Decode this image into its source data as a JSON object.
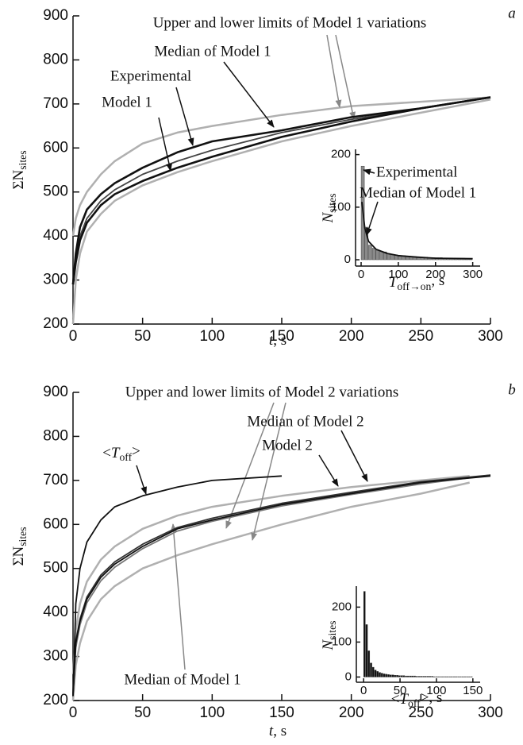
{
  "chart_data": [
    {
      "type": "line",
      "panel_label": "a",
      "x_label": [
        {
          "text": "t",
          "italic": true
        },
        ", s"
      ],
      "y_label": [
        "ΣN",
        {
          "text": "sites",
          "sub": true
        }
      ],
      "xlim": [
        0,
        300
      ],
      "ylim": [
        200,
        900
      ],
      "xticks": [
        0,
        50,
        100,
        150,
        200,
        250,
        300
      ],
      "yticks": [
        200,
        300,
        400,
        500,
        600,
        700,
        800,
        900
      ],
      "series": [
        {
          "name": "Upper and lower limits of Model 1 variations",
          "color": "#b0b0b0",
          "x": [
            0,
            2,
            5,
            10,
            20,
            30,
            50,
            75,
            100,
            150,
            200,
            250,
            300
          ],
          "upper": [
            400,
            440,
            470,
            500,
            540,
            570,
            610,
            635,
            650,
            675,
            695,
            705,
            715
          ],
          "lower": [
            200,
            300,
            360,
            410,
            450,
            480,
            515,
            545,
            570,
            615,
            650,
            680,
            710
          ]
        },
        {
          "name": "Median of Model 1",
          "color": "#444444",
          "x": [
            0,
            2,
            5,
            10,
            20,
            30,
            50,
            75,
            100,
            150,
            200,
            250,
            300
          ],
          "values": [
            290,
            350,
            400,
            440,
            480,
            505,
            540,
            570,
            595,
            635,
            665,
            690,
            715
          ]
        },
        {
          "name": "Experimental",
          "color": "#111111",
          "x": [
            0,
            2,
            5,
            10,
            20,
            30,
            50,
            75,
            100,
            150,
            200,
            250,
            300
          ],
          "values": [
            290,
            360,
            420,
            460,
            495,
            520,
            555,
            590,
            615,
            640,
            670,
            690,
            715
          ]
        },
        {
          "name": "Model 1",
          "color": "#111111",
          "x": [
            0,
            2,
            5,
            10,
            20,
            30,
            50,
            75,
            100,
            150,
            200,
            250,
            300
          ],
          "values": [
            290,
            340,
            390,
            430,
            470,
            495,
            525,
            555,
            580,
            625,
            660,
            690,
            715
          ]
        }
      ]
    },
    {
      "type": "histogram",
      "x_label": [
        {
          "text": "T",
          "italic": true
        },
        {
          "text": "off→on",
          "sub": true
        },
        ", s"
      ],
      "y_label": [
        {
          "text": "N",
          "italic": true
        },
        {
          "text": "sites",
          "sub": true
        }
      ],
      "xlim": [
        -15,
        320
      ],
      "ylim": [
        -12,
        210
      ],
      "xticks": [
        0,
        100,
        200,
        300
      ],
      "yticks": [
        0,
        100,
        200
      ],
      "name": "Experimental",
      "color": "#8a8a8a",
      "bins": [
        0,
        10,
        20,
        30,
        40,
        50,
        60,
        70,
        80,
        90,
        100,
        110,
        120,
        130,
        140,
        150,
        160,
        170,
        180,
        190,
        200,
        210,
        220,
        230,
        240,
        250,
        260,
        270,
        280,
        290,
        300
      ],
      "values": [
        178,
        62,
        28,
        22,
        18,
        16,
        15,
        12,
        10,
        9,
        8,
        8,
        7,
        6,
        6,
        5,
        5,
        5,
        4,
        4,
        4,
        4,
        3,
        3,
        3,
        3,
        3,
        3,
        2,
        2
      ],
      "line": {
        "name": "Median of Model 1",
        "color": "#111111",
        "x": [
          2,
          10,
          20,
          40,
          70,
          100,
          150,
          200,
          300
        ],
        "values": [
          110,
          60,
          35,
          20,
          12,
          8,
          5,
          3,
          2
        ]
      }
    },
    {
      "type": "line",
      "panel_label": "b",
      "x_label": [
        {
          "text": "t",
          "italic": true
        },
        ", s"
      ],
      "y_label": [
        "ΣN",
        {
          "text": "sites",
          "sub": true
        }
      ],
      "xlim": [
        0,
        300
      ],
      "ylim": [
        200,
        900
      ],
      "xticks": [
        0,
        50,
        100,
        150,
        200,
        250,
        300
      ],
      "yticks": [
        200,
        300,
        400,
        500,
        600,
        700,
        800,
        900
      ],
      "series": [
        {
          "name": "Upper and lower limits of Model 2 variations",
          "color": "#b0b0b0",
          "x": [
            0,
            2,
            5,
            10,
            20,
            30,
            50,
            75,
            100,
            150,
            200,
            250,
            285
          ],
          "upper": [
            260,
            360,
            420,
            470,
            520,
            550,
            590,
            620,
            640,
            665,
            685,
            700,
            710
          ],
          "lower": [
            200,
            280,
            330,
            380,
            430,
            460,
            500,
            530,
            555,
            600,
            640,
            670,
            695
          ]
        },
        {
          "name": "Median of Model 1",
          "color": "#777777",
          "x": [
            0,
            2,
            5,
            10,
            20,
            30,
            50,
            75,
            100,
            150,
            200,
            250,
            300
          ],
          "values": [
            215,
            320,
            372,
            422,
            472,
            503,
            545,
            585,
            607,
            642,
            668,
            692,
            712
          ]
        },
        {
          "name": "Median of Model 2",
          "color": "#333333",
          "x": [
            0,
            2,
            5,
            10,
            20,
            30,
            50,
            75,
            100,
            150,
            200,
            250,
            300
          ],
          "values": [
            215,
            335,
            385,
            435,
            485,
            515,
            555,
            593,
            614,
            648,
            673,
            697,
            712
          ]
        },
        {
          "name": "Model 2",
          "color": "#111111",
          "x": [
            0,
            2,
            5,
            10,
            20,
            30,
            50,
            75,
            100,
            150,
            200,
            250,
            300
          ],
          "values": [
            210,
            330,
            380,
            430,
            480,
            510,
            550,
            590,
            610,
            645,
            670,
            695,
            710
          ]
        },
        {
          "name": [
            "<",
            {
              "text": "T",
              "italic": true
            },
            {
              "text": "off",
              "sub": true
            },
            ">"
          ],
          "color": "#111111",
          "x": [
            0,
            2,
            5,
            10,
            20,
            30,
            50,
            75,
            100,
            150
          ],
          "values": [
            210,
            420,
            500,
            560,
            610,
            640,
            665,
            685,
            700,
            710
          ]
        }
      ]
    },
    {
      "type": "histogram",
      "x_label": [
        "<",
        {
          "text": "T",
          "italic": true
        },
        {
          "text": "off",
          "sub": true
        },
        ">, s"
      ],
      "y_label": [
        {
          "text": "N",
          "italic": true
        },
        {
          "text": "sites",
          "sub": true
        }
      ],
      "xlim": [
        -10,
        160
      ],
      "ylim": [
        -15,
        260
      ],
      "xticks": [
        0,
        50,
        100,
        150
      ],
      "yticks": [
        0,
        100,
        200
      ],
      "color": "#111111",
      "bins": [
        0,
        3,
        6,
        9,
        12,
        15,
        18,
        21,
        24,
        27,
        30,
        33,
        36,
        39,
        42,
        45,
        48,
        51,
        54,
        57,
        60,
        63,
        66,
        69,
        72,
        75,
        78,
        81,
        84,
        87,
        90,
        93,
        96,
        99,
        102,
        105,
        108,
        111,
        114,
        117,
        120,
        123,
        126,
        129,
        132,
        135,
        138,
        141,
        144,
        147,
        150
      ],
      "values": [
        245,
        150,
        75,
        40,
        28,
        20,
        16,
        13,
        11,
        9,
        8,
        7,
        6,
        6,
        5,
        5,
        4,
        4,
        4,
        3,
        3,
        3,
        3,
        3,
        2,
        2,
        2,
        2,
        2,
        2,
        2,
        2,
        1,
        1,
        1,
        1,
        1,
        1,
        1,
        1,
        1,
        1,
        1,
        1,
        1,
        1,
        1,
        1,
        1,
        1
      ]
    }
  ]
}
